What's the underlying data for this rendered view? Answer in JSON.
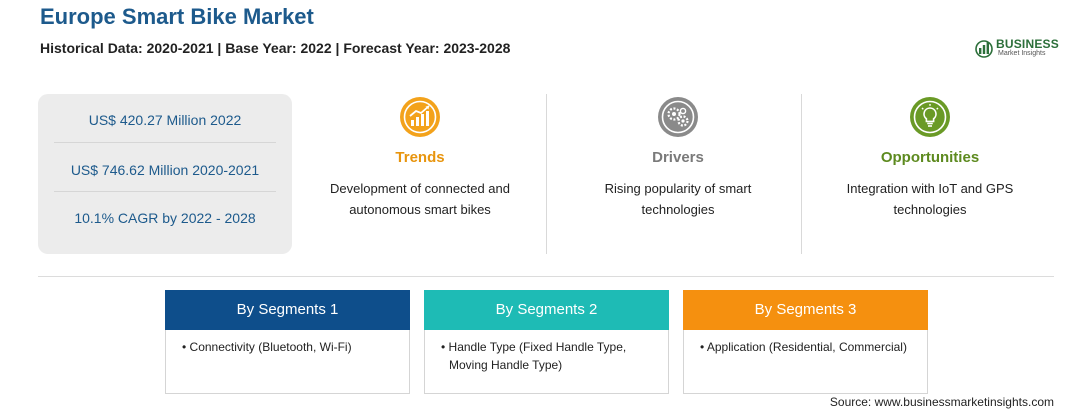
{
  "header": {
    "title": "Europe Smart Bike Market",
    "subtitle": "Historical Data: 2020-2021 | Base Year: 2022 | Forecast Year: 2023-2028"
  },
  "logo": {
    "word": "BUSINESS",
    "sub": "Market Insights",
    "color": "#2c6f3a"
  },
  "stats": [
    "US$ 420.27 Million 2022",
    "US$ 746.62 Million 2020-2021",
    "10.1% CAGR by 2022 - 2028"
  ],
  "columns": [
    {
      "label": "Trends",
      "icon": "growth-chart-icon",
      "color": "#e8950e",
      "desc": "Development of connected and autonomous smart bikes"
    },
    {
      "label": "Drivers",
      "icon": "gears-icon",
      "color": "#7a7a7a",
      "desc": "Rising popularity of smart technologies"
    },
    {
      "label": "Opportunities",
      "icon": "lightbulb-icon",
      "color": "#5d8a1f",
      "desc": "Integration with IoT and GPS technologies"
    }
  ],
  "segments": [
    {
      "title": "By Segments 1",
      "color": "#0e4e8b",
      "items": [
        "Connectivity (Bluetooth, Wi-Fi)"
      ]
    },
    {
      "title": "By Segments 2",
      "color": "#1ebbb5",
      "items": [
        "Handle Type (Fixed Handle Type, Moving Handle Type)"
      ]
    },
    {
      "title": "By Segments 3",
      "color": "#f5900f",
      "items": [
        "Application (Residential, Commercial)"
      ]
    }
  ],
  "footer": {
    "source": "Source: www.businessmarketinsights.com"
  }
}
